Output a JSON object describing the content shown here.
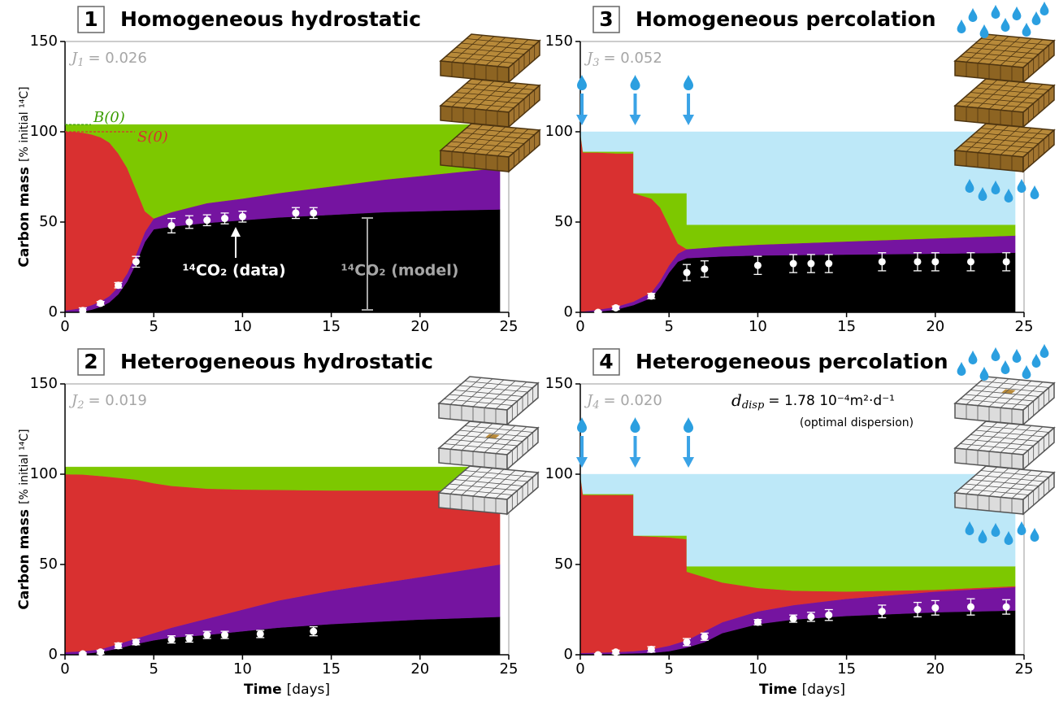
{
  "chart_data": [
    {
      "type": "area",
      "panel": "1",
      "title": "Homogeneous hydrostatic",
      "j": {
        "symbol": "J",
        "index": "1",
        "text": "= 0.026"
      },
      "y_label": "Carbon mass",
      "y_unit": "[% initial ¹⁴C]",
      "xlim": [
        0,
        25
      ],
      "ylim": [
        0,
        150
      ],
      "xticks": [
        0,
        5,
        10,
        15,
        20,
        25
      ],
      "yticks": [
        0,
        50,
        100,
        150
      ],
      "x": [
        0,
        0.5,
        1,
        1.5,
        2,
        2.5,
        3,
        3.5,
        4,
        4.5,
        5,
        6,
        7,
        8,
        10,
        12,
        14,
        16,
        18,
        20,
        22,
        24.5
      ],
      "series": [
        {
          "color": "#000000",
          "values": [
            0,
            0.2,
            0.5,
            1.5,
            3,
            5.5,
            10,
            17,
            27,
            39,
            46,
            47.5,
            48.5,
            49.5,
            51,
            52.5,
            53.5,
            54.5,
            55.5,
            56,
            56.5,
            57
          ]
        },
        {
          "color": "#7514a0",
          "values": [
            1,
            1.5,
            2,
            2.5,
            3,
            3.5,
            4,
            4.5,
            5,
            5.5,
            6,
            8,
            9.5,
            11,
            12,
            13.5,
            15,
            16.5,
            18,
            19.5,
            21,
            23
          ]
        },
        {
          "color": "#d93030",
          "values": [
            99,
            98.3,
            97,
            94.5,
            91,
            85,
            74,
            58.5,
            36,
            11.5,
            0,
            0,
            0,
            0,
            0,
            0,
            0,
            0,
            0,
            0,
            0,
            0
          ]
        },
        {
          "color": "#7dc800",
          "values": [
            4,
            4,
            4.5,
            5.5,
            7,
            10,
            16,
            24,
            36,
            48,
            52,
            48.5,
            46,
            43.5,
            41,
            38,
            35.5,
            33,
            30.5,
            28.5,
            26.5,
            24
          ]
        }
      ],
      "data": {
        "color": "#ffffff",
        "x": [
          1,
          2,
          3,
          4,
          6,
          7,
          8,
          9,
          10,
          13,
          14
        ],
        "values": [
          1,
          5,
          15,
          28,
          48,
          50,
          51,
          52,
          53,
          55,
          55
        ],
        "errors": [
          1.5,
          1,
          1.5,
          3,
          4,
          3.5,
          3,
          3,
          3,
          3,
          3
        ]
      },
      "reference_lines": [
        {
          "label": "B(0)",
          "value": 104,
          "color": "#3a9d00"
        },
        {
          "label": "S(0)",
          "value": 100,
          "color": "#d93030"
        }
      ],
      "annotations": [
        "¹⁴CO₂ (data)",
        "¹⁴CO₂ (model)"
      ]
    },
    {
      "type": "area",
      "panel": "2",
      "title": "Heterogeneous hydrostatic",
      "j": {
        "symbol": "J",
        "index": "2",
        "text": "= 0.019"
      },
      "y_label": "Carbon mass",
      "y_unit": "[% initial ¹⁴C]",
      "x_label": "Time",
      "x_unit": "[days]",
      "xlim": [
        0,
        25
      ],
      "ylim": [
        0,
        150
      ],
      "xticks": [
        0,
        5,
        10,
        15,
        20,
        25
      ],
      "yticks": [
        0,
        50,
        100,
        150
      ],
      "x": [
        0,
        1,
        2,
        3,
        4,
        5,
        6,
        8,
        10,
        12,
        15,
        20,
        24.5
      ],
      "series": [
        {
          "color": "#000000",
          "values": [
            0,
            0.5,
            1.5,
            3.5,
            6,
            8,
            9.5,
            11,
            13,
            15,
            17,
            19.5,
            21
          ]
        },
        {
          "color": "#7514a0",
          "values": [
            1.5,
            1.5,
            1.5,
            2.5,
            3,
            4,
            5.5,
            9,
            12,
            15,
            18.5,
            23.5,
            29
          ]
        },
        {
          "color": "#d93030",
          "values": [
            98.5,
            97.8,
            96,
            92,
            88,
            83,
            78.5,
            72,
            66.5,
            61.3,
            55.5,
            48,
            41
          ]
        },
        {
          "color": "#7dc800",
          "values": [
            4,
            4.2,
            5,
            6,
            7,
            9,
            10.5,
            12,
            12.5,
            12.7,
            13,
            13,
            13
          ]
        }
      ],
      "data": {
        "color": "#ffffff",
        "x": [
          1,
          2,
          3,
          4,
          6,
          7,
          8,
          9,
          11,
          14
        ],
        "values": [
          0.5,
          1.5,
          5,
          7,
          8.5,
          9,
          11,
          11,
          11.5,
          13
        ],
        "errors": [
          0.5,
          1,
          1.5,
          1.5,
          2,
          2,
          2,
          2,
          2,
          2.5
        ]
      }
    },
    {
      "type": "area",
      "panel": "3",
      "title": "Homogeneous percolation",
      "j": {
        "symbol": "J",
        "index": "3",
        "text": "= 0.052"
      },
      "xlim": [
        0,
        25
      ],
      "ylim": [
        0,
        150
      ],
      "xticks": [
        0,
        5,
        10,
        15,
        20,
        25
      ],
      "yticks": [
        0,
        50,
        100,
        150
      ],
      "x": [
        0,
        0.15,
        1,
        2,
        3,
        3,
        4,
        4.5,
        5,
        5.5,
        6,
        6,
        7,
        8,
        10,
        12,
        15,
        20,
        24.5
      ],
      "series": [
        {
          "color": "#000000",
          "values": [
            0,
            0,
            0.3,
            1.5,
            4,
            4,
            8,
            14,
            22,
            28,
            30,
            30,
            30.5,
            31,
            31.5,
            31.7,
            32,
            32.5,
            33
          ]
        },
        {
          "color": "#7514a0",
          "values": [
            0.5,
            0.5,
            1.2,
            1.5,
            2,
            2,
            3,
            3.5,
            4,
            4.5,
            5,
            5,
            5.2,
            5.5,
            6,
            6.5,
            7.3,
            8.5,
            9.5
          ]
        },
        {
          "color": "#d93030",
          "values": [
            99.5,
            88,
            87,
            85,
            82,
            60,
            52,
            40.5,
            22,
            5.5,
            0,
            0,
            0,
            0,
            0,
            0,
            0,
            0,
            0
          ]
        },
        {
          "color": "#7dc800",
          "values": [
            0,
            0.5,
            0.5,
            1,
            1,
            0,
            3,
            8,
            18,
            28,
            31,
            13.5,
            12.8,
            12,
            11,
            10.3,
            9.2,
            7.5,
            6
          ]
        },
        {
          "color": "#bde8f8",
          "values": [
            0,
            11,
            11,
            11,
            11,
            34,
            34,
            34,
            34,
            34,
            34,
            51.5,
            51.5,
            51.5,
            51.5,
            51.5,
            51.5,
            51.5,
            51.5
          ]
        }
      ],
      "data": {
        "color": "#ffffff",
        "x": [
          1,
          2,
          4,
          6,
          7,
          10,
          12,
          13,
          14,
          17,
          19,
          20,
          22,
          24
        ],
        "values": [
          0,
          2.5,
          9,
          22,
          24,
          26,
          27,
          27,
          27,
          28,
          28,
          28,
          28,
          28
        ],
        "errors": [
          0.5,
          1,
          1.5,
          4.5,
          4.5,
          5,
          5,
          5,
          5,
          5,
          5,
          5,
          5,
          5
        ]
      },
      "percolation_times": [
        0,
        3,
        6
      ]
    },
    {
      "type": "area",
      "panel": "4",
      "title": "Heterogeneous percolation",
      "j": {
        "symbol": "J",
        "index": "4",
        "text": "= 0.020"
      },
      "coefficient": {
        "symbol": "d",
        "index": "disp",
        "text": "= 1.78 10⁻⁴m²·d⁻¹",
        "note": "(optimal dispersion)"
      },
      "x_label": "Time",
      "x_unit": "[days]",
      "xlim": [
        0,
        25
      ],
      "ylim": [
        0,
        150
      ],
      "xticks": [
        0,
        5,
        10,
        15,
        20,
        25
      ],
      "yticks": [
        0,
        50,
        100,
        150
      ],
      "x": [
        0,
        0.15,
        2,
        3,
        3,
        4,
        5,
        6,
        6,
        7,
        8,
        10,
        12,
        15,
        20,
        24.5
      ],
      "series": [
        {
          "color": "#000000",
          "values": [
            0,
            0,
            0.5,
            0.7,
            0.7,
            1,
            2,
            4,
            4,
            7,
            12,
            17,
            19.5,
            21.5,
            23.5,
            24.5
          ]
        },
        {
          "color": "#7514a0",
          "values": [
            1,
            1,
            1,
            1.3,
            1.3,
            2,
            3,
            4,
            4,
            6,
            6,
            7,
            8,
            9.5,
            11.5,
            13
          ]
        },
        {
          "color": "#d93030",
          "values": [
            99,
            87.5,
            87,
            86.5,
            64,
            62.5,
            60,
            56,
            38,
            30,
            22,
            13,
            8,
            4,
            1,
            0.5
          ]
        },
        {
          "color": "#7dc800",
          "values": [
            0,
            0.5,
            0.5,
            0.5,
            0,
            0.5,
            1,
            2,
            3,
            6,
            9,
            12,
            13.5,
            14,
            13,
            11
          ]
        },
        {
          "color": "#bde8f8",
          "values": [
            0,
            11,
            11,
            11,
            34,
            34,
            34,
            34,
            51,
            51,
            51,
            51,
            51,
            51,
            51,
            51
          ]
        }
      ],
      "data": {
        "color": "#ffffff",
        "x": [
          1,
          2,
          4,
          6,
          7,
          10,
          12,
          13,
          14,
          17,
          19,
          20,
          22,
          24
        ],
        "values": [
          0,
          1.5,
          3,
          7,
          10,
          18,
          20,
          21,
          22,
          24,
          25,
          26,
          26.5,
          26.5
        ],
        "errors": [
          0.5,
          1,
          1.5,
          2,
          2,
          1.5,
          2,
          2.5,
          3,
          3.5,
          4,
          4,
          4.5,
          4
        ]
      },
      "percolation_times": [
        0,
        3,
        6
      ]
    }
  ]
}
